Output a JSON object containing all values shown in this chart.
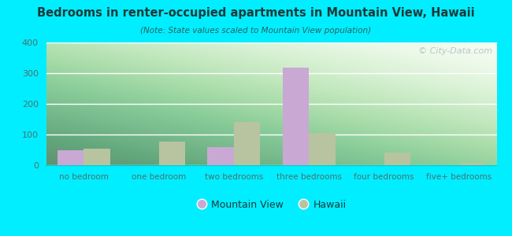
{
  "title": "Bedrooms in renter-occupied apartments in Mountain View, Hawaii",
  "subtitle": "(Note: State values scaled to Mountain View population)",
  "categories": [
    "no bedroom",
    "one bedroom",
    "two bedrooms",
    "three bedrooms",
    "four bedrooms",
    "five+ bedrooms"
  ],
  "mountain_view": [
    50,
    0,
    60,
    318,
    0,
    0
  ],
  "hawaii": [
    55,
    78,
    140,
    105,
    42,
    8
  ],
  "mv_color": "#c9a8d4",
  "hi_color": "#b8c4a0",
  "bg_color": "#00eeff",
  "ylim": [
    0,
    400
  ],
  "yticks": [
    0,
    100,
    200,
    300,
    400
  ],
  "bar_width": 0.35,
  "legend_mv": "Mountain View",
  "legend_hi": "Hawaii",
  "watermark": "© City-Data.com",
  "title_color": "#1a3a3a",
  "subtitle_color": "#2a6060",
  "tick_color": "#4a7070",
  "legend_color": "#1a3a3a"
}
